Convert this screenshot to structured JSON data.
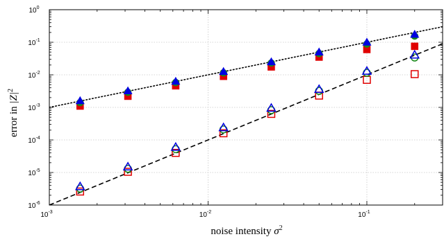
{
  "chart_data": {
    "type": "scatter",
    "title": "",
    "xlabel_prefix": "noise intensity ",
    "xlabel_symbol": "σ",
    "xlabel_exp": "2",
    "ylabel_prefix": "error in ",
    "ylabel_symbol": "|Z|",
    "ylabel_exp": "2",
    "xscale": "log",
    "yscale": "log",
    "xlim": [
      0.001,
      0.3
    ],
    "ylim": [
      1e-06,
      1
    ],
    "x_ticks": [
      {
        "value": 0.001,
        "base": "10",
        "exp": "-3"
      },
      {
        "value": 0.01,
        "base": "10",
        "exp": "-2"
      },
      {
        "value": 0.1,
        "base": "10",
        "exp": "-1"
      }
    ],
    "y_ticks": [
      {
        "value": 1e-06,
        "base": "10",
        "exp": "-6"
      },
      {
        "value": 1e-05,
        "base": "10",
        "exp": "-5"
      },
      {
        "value": 0.0001,
        "base": "10",
        "exp": "-4"
      },
      {
        "value": 0.001,
        "base": "10",
        "exp": "-3"
      },
      {
        "value": 0.01,
        "base": "10",
        "exp": "-2"
      },
      {
        "value": 0.1,
        "base": "10",
        "exp": "-1"
      },
      {
        "value": 1,
        "base": "10",
        "exp": "0"
      }
    ],
    "grid": true,
    "legend": "none",
    "x": [
      0.0015625,
      0.003125,
      0.00625,
      0.0125,
      0.025,
      0.05,
      0.1,
      0.2
    ],
    "series": [
      {
        "marker": "filled-square",
        "color": "#e00000",
        "values": [
          0.0011,
          0.0022,
          0.0046,
          0.009,
          0.0175,
          0.035,
          0.06,
          0.075
        ]
      },
      {
        "marker": "filled-circle",
        "color": "#1a8a1a",
        "values": [
          0.0014,
          0.0029,
          0.0058,
          0.0115,
          0.023,
          0.045,
          0.088,
          0.155
        ]
      },
      {
        "marker": "filled-triangle",
        "color": "#0000e0",
        "values": [
          0.0016,
          0.0032,
          0.0063,
          0.0126,
          0.025,
          0.05,
          0.1,
          0.175
        ]
      },
      {
        "marker": "open-square",
        "color": "#e00000",
        "values": [
          2.6e-06,
          1.05e-05,
          4e-05,
          0.00016,
          0.00063,
          0.0023,
          0.007,
          0.0105
        ]
      },
      {
        "marker": "open-circle",
        "color": "#1a8a1a",
        "values": [
          3.2e-06,
          1.3e-05,
          5.2e-05,
          0.00021,
          0.00082,
          0.0032,
          0.0115,
          0.034
        ]
      },
      {
        "marker": "open-triangle",
        "color": "#0000e0",
        "values": [
          3.7e-06,
          1.5e-05,
          6e-05,
          0.00024,
          0.00095,
          0.0036,
          0.013,
          0.041
        ]
      }
    ],
    "reference_lines": [
      {
        "style": "dotted",
        "color": "#000000",
        "slope": 1,
        "x": [
          0.001,
          0.3
        ],
        "y": [
          0.001,
          0.3
        ]
      },
      {
        "style": "dashed",
        "color": "#000000",
        "slope": 2,
        "x": [
          0.001,
          0.3
        ],
        "y": [
          1e-06,
          0.09
        ]
      }
    ]
  }
}
